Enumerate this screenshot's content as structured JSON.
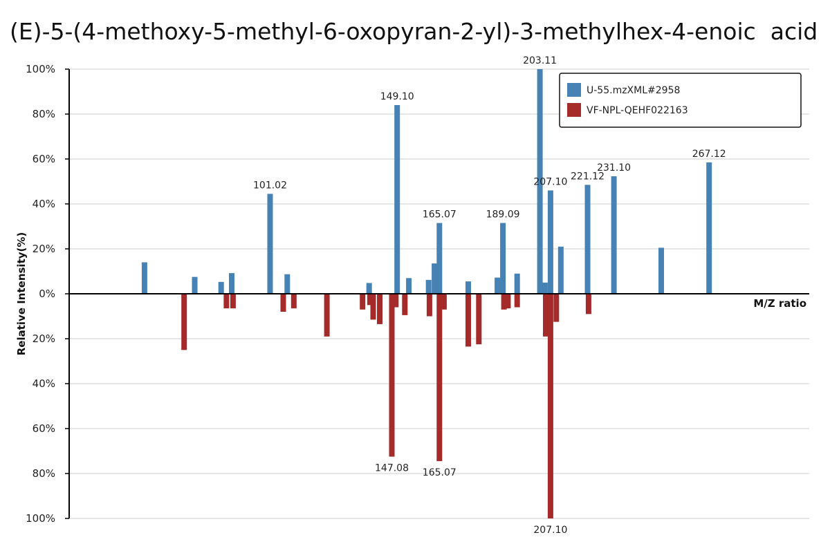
{
  "title": "(E)-5-(4-methoxy-5-methyl-6-oxopyran-2-yl)-3-methylhex-4-enoic  acid",
  "colors": {
    "top_series": "#4682b4",
    "bottom_series": "#a52a2a",
    "grid": "#dddddd",
    "axis": "#000000"
  },
  "chart_data": {
    "type": "bar",
    "xlabel": "M/Z ratio",
    "ylabel": "Relative Intensity(%)",
    "y_ticks_top": [
      "100%",
      "80%",
      "60%",
      "40%",
      "20%",
      "0%"
    ],
    "y_ticks_bottom": [
      "20%",
      "40%",
      "60%",
      "80%",
      "100%"
    ],
    "ylim_top": [
      0,
      100
    ],
    "ylim_bottom": [
      0,
      100
    ],
    "grid": true,
    "legend_position": "top-right",
    "series": [
      {
        "name": "U-55.mzXML#2958",
        "direction": "up",
        "peaks": [
          {
            "mz": 53.5,
            "intensity": 14
          },
          {
            "mz": 72.5,
            "intensity": 7.5
          },
          {
            "mz": 82.5,
            "intensity": 5.3
          },
          {
            "mz": 86.5,
            "intensity": 9.2
          },
          {
            "mz": 101.02,
            "intensity": 44.5,
            "label": "101.02"
          },
          {
            "mz": 107.5,
            "intensity": 8.7
          },
          {
            "mz": 138.5,
            "intensity": 4.8
          },
          {
            "mz": 149.1,
            "intensity": 84,
            "label": "149.10"
          },
          {
            "mz": 153.5,
            "intensity": 7
          },
          {
            "mz": 161.0,
            "intensity": 6.2
          },
          {
            "mz": 163.2,
            "intensity": 13.5
          },
          {
            "mz": 165.07,
            "intensity": 31.5,
            "label": "165.07"
          },
          {
            "mz": 176.0,
            "intensity": 5.5
          },
          {
            "mz": 187.0,
            "intensity": 7.2
          },
          {
            "mz": 189.0,
            "intensity": 6.5
          },
          {
            "mz": 189.09,
            "intensity": 31.5,
            "label": "189.09"
          },
          {
            "mz": 194.5,
            "intensity": 9
          },
          {
            "mz": 203.11,
            "intensity": 100,
            "label": "203.11"
          },
          {
            "mz": 205.0,
            "intensity": 5
          },
          {
            "mz": 207.1,
            "intensity": 46,
            "label": "207.10"
          },
          {
            "mz": 211.0,
            "intensity": 21
          },
          {
            "mz": 221.12,
            "intensity": 48.5,
            "label": "221.12"
          },
          {
            "mz": 231.1,
            "intensity": 52.3,
            "label": "231.10"
          },
          {
            "mz": 249.0,
            "intensity": 20.5
          },
          {
            "mz": 267.12,
            "intensity": 58.5,
            "label": "267.12"
          }
        ]
      },
      {
        "name": "VF-NPL-QEHF022163",
        "direction": "down",
        "peaks": [
          {
            "mz": 68.5,
            "intensity": 25
          },
          {
            "mz": 84.5,
            "intensity": 6.5
          },
          {
            "mz": 87.0,
            "intensity": 6.5
          },
          {
            "mz": 106.0,
            "intensity": 8
          },
          {
            "mz": 110.0,
            "intensity": 6.5
          },
          {
            "mz": 122.5,
            "intensity": 19
          },
          {
            "mz": 136.0,
            "intensity": 7
          },
          {
            "mz": 140.0,
            "intensity": 11.5
          },
          {
            "mz": 142.5,
            "intensity": 13.5
          },
          {
            "mz": 138.8,
            "intensity": 5
          },
          {
            "mz": 147.08,
            "intensity": 72.5,
            "label": "147.08"
          },
          {
            "mz": 148.6,
            "intensity": 6
          },
          {
            "mz": 152.0,
            "intensity": 9.5
          },
          {
            "mz": 161.3,
            "intensity": 10
          },
          {
            "mz": 165.07,
            "intensity": 74.5,
            "label": "165.07"
          },
          {
            "mz": 166.8,
            "intensity": 7
          },
          {
            "mz": 176.0,
            "intensity": 23.5
          },
          {
            "mz": 180.0,
            "intensity": 22.5
          },
          {
            "mz": 189.5,
            "intensity": 7
          },
          {
            "mz": 191.0,
            "intensity": 6.5
          },
          {
            "mz": 194.5,
            "intensity": 6
          },
          {
            "mz": 205.3,
            "intensity": 19
          },
          {
            "mz": 207.1,
            "intensity": 100,
            "label": "207.10"
          },
          {
            "mz": 209.3,
            "intensity": 12.5
          },
          {
            "mz": 221.5,
            "intensity": 9
          }
        ]
      }
    ]
  }
}
